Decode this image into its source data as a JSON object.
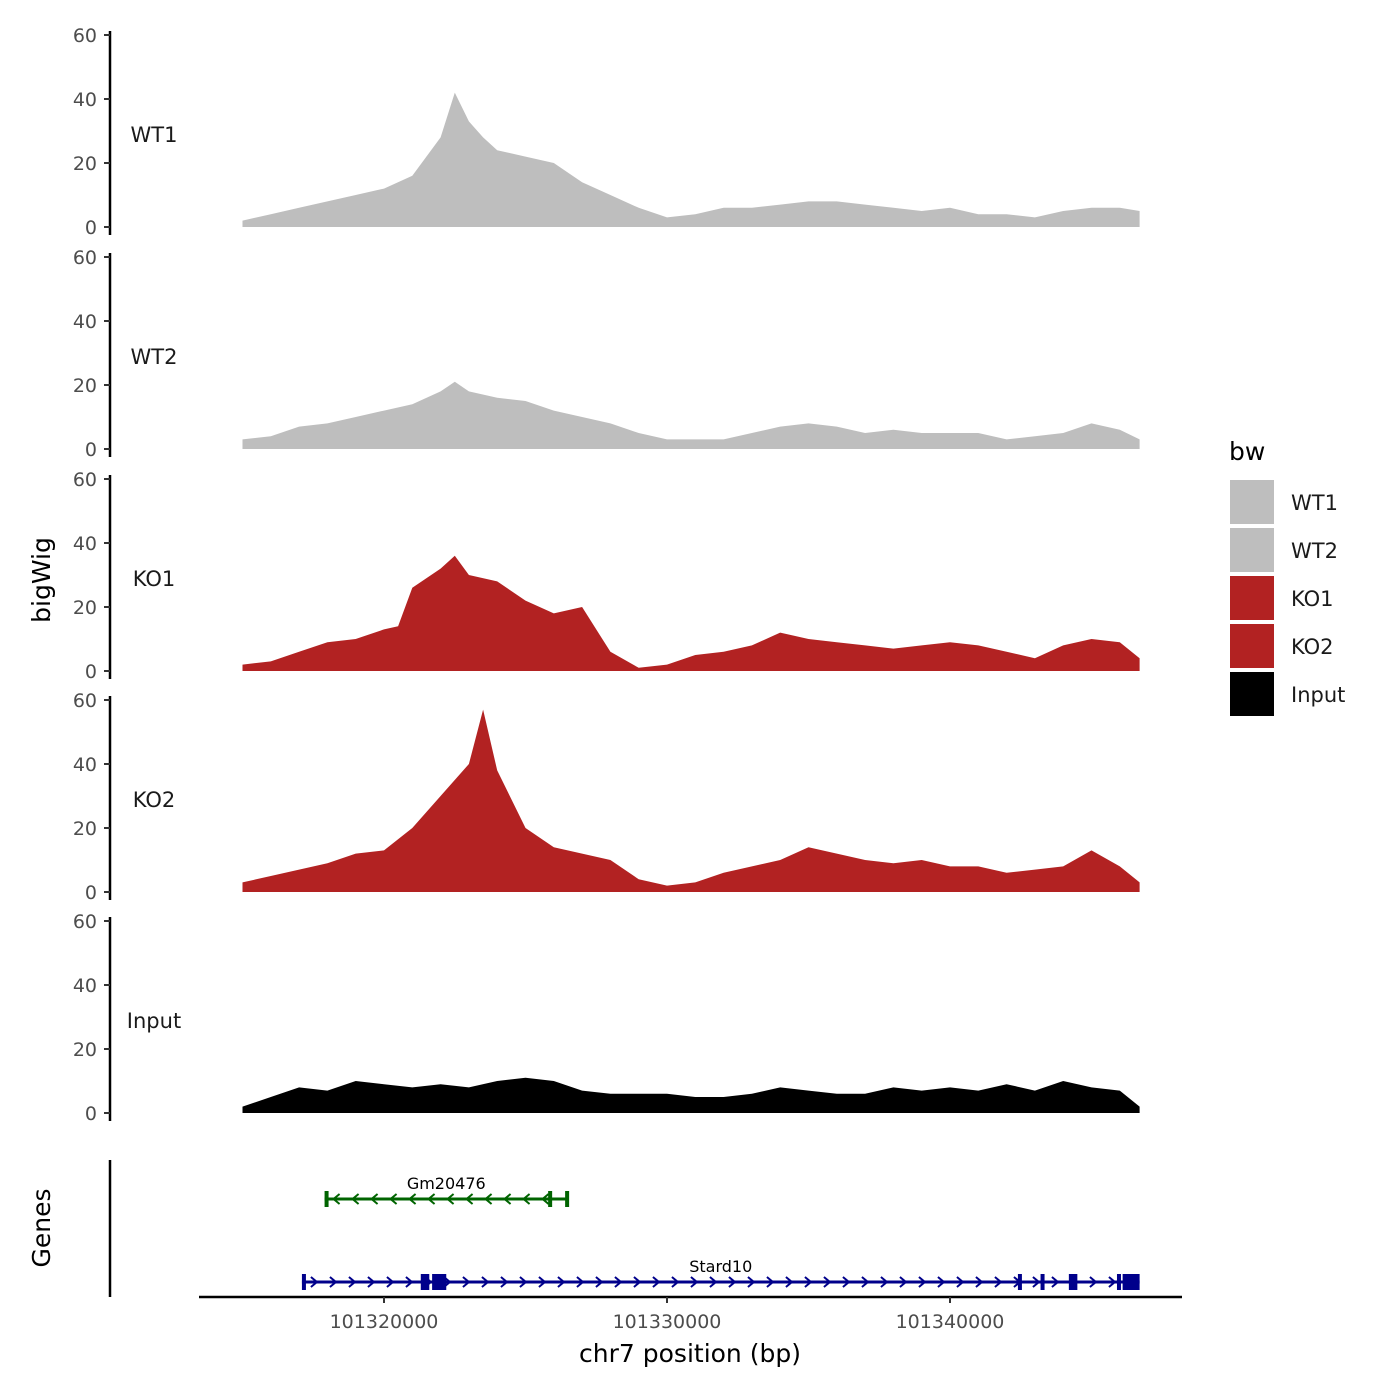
{
  "chart_data": {
    "type": "area",
    "region": {
      "chromosome": "chr7",
      "start": 101315000,
      "end": 101347000
    },
    "xlabel": "chr7 position (bp)",
    "ylabel": "bigWig",
    "genes_label": "Genes",
    "ylim": [
      0,
      60
    ],
    "yticks": [
      0,
      20,
      40,
      60
    ],
    "xticks": [
      101320000,
      101330000,
      101340000
    ],
    "xtick_labels": [
      "101320000",
      "101330000",
      "101340000"
    ],
    "legend": {
      "title": "bw",
      "entries": [
        {
          "label": "WT1",
          "color": "#bebebe"
        },
        {
          "label": "WT2",
          "color": "#bebebe"
        },
        {
          "label": "KO1",
          "color": "#b22222"
        },
        {
          "label": "KO2",
          "color": "#b22222"
        },
        {
          "label": "Input",
          "color": "#000000"
        }
      ]
    },
    "tracks": [
      {
        "name": "WT1",
        "color": "#bebebe",
        "x": [
          101315000,
          101316000,
          101317000,
          101318000,
          101319000,
          101320000,
          101321000,
          101321500,
          101322000,
          101322500,
          101323000,
          101323500,
          101324000,
          101325000,
          101326000,
          101327000,
          101328000,
          101329000,
          101330000,
          101331000,
          101332000,
          101333000,
          101334000,
          101335000,
          101336000,
          101337000,
          101338000,
          101339000,
          101340000,
          101341000,
          101342000,
          101343000,
          101344000,
          101345000,
          101346000,
          101346700
        ],
        "values": [
          2,
          4,
          6,
          8,
          10,
          12,
          16,
          22,
          28,
          42,
          33,
          28,
          24,
          22,
          20,
          14,
          10,
          6,
          3,
          4,
          6,
          6,
          7,
          8,
          8,
          7,
          6,
          5,
          6,
          4,
          4,
          3,
          5,
          6,
          6,
          5
        ]
      },
      {
        "name": "WT2",
        "color": "#bebebe",
        "x": [
          101315000,
          101316000,
          101317000,
          101318000,
          101319000,
          101320000,
          101321000,
          101322000,
          101322500,
          101323000,
          101324000,
          101325000,
          101326000,
          101327000,
          101328000,
          101329000,
          101330000,
          101331000,
          101332000,
          101333000,
          101334000,
          101335000,
          101336000,
          101337000,
          101338000,
          101339000,
          101340000,
          101341000,
          101342000,
          101343000,
          101344000,
          101345000,
          101346000,
          101346700
        ],
        "values": [
          3,
          4,
          7,
          8,
          10,
          12,
          14,
          18,
          21,
          18,
          16,
          15,
          12,
          10,
          8,
          5,
          3,
          3,
          3,
          5,
          7,
          8,
          7,
          5,
          6,
          5,
          5,
          5,
          3,
          4,
          5,
          8,
          6,
          3
        ]
      },
      {
        "name": "KO1",
        "color": "#b22222",
        "x": [
          101315000,
          101316000,
          101317000,
          101318000,
          101319000,
          101320000,
          101320500,
          101321000,
          101322000,
          101322500,
          101323000,
          101324000,
          101325000,
          101326000,
          101327000,
          101328000,
          101329000,
          101330000,
          101331000,
          101332000,
          101333000,
          101334000,
          101335000,
          101336000,
          101337000,
          101338000,
          101339000,
          101340000,
          101341000,
          101342000,
          101343000,
          101344000,
          101345000,
          101346000,
          101346700
        ],
        "values": [
          2,
          3,
          6,
          9,
          10,
          13,
          14,
          26,
          32,
          36,
          30,
          28,
          22,
          18,
          20,
          6,
          1,
          2,
          5,
          6,
          8,
          12,
          10,
          9,
          8,
          7,
          8,
          9,
          8,
          6,
          4,
          8,
          10,
          9,
          4
        ]
      },
      {
        "name": "KO2",
        "color": "#b22222",
        "x": [
          101315000,
          101316000,
          101317000,
          101318000,
          101319000,
          101320000,
          101321000,
          101322000,
          101323000,
          101323500,
          101324000,
          101325000,
          101326000,
          101327000,
          101328000,
          101329000,
          101330000,
          101331000,
          101332000,
          101333000,
          101334000,
          101335000,
          101336000,
          101337000,
          101338000,
          101339000,
          101340000,
          101341000,
          101342000,
          101343000,
          101344000,
          101345000,
          101346000,
          101346700
        ],
        "values": [
          3,
          5,
          7,
          9,
          12,
          13,
          20,
          30,
          40,
          57,
          38,
          20,
          14,
          12,
          10,
          4,
          2,
          3,
          6,
          8,
          10,
          14,
          12,
          10,
          9,
          10,
          8,
          8,
          6,
          7,
          8,
          13,
          8,
          3
        ]
      },
      {
        "name": "Input",
        "color": "#000000",
        "x": [
          101315000,
          101316000,
          101317000,
          101318000,
          101319000,
          101320000,
          101321000,
          101322000,
          101323000,
          101324000,
          101325000,
          101326000,
          101327000,
          101328000,
          101329000,
          101330000,
          101331000,
          101332000,
          101333000,
          101334000,
          101335000,
          101336000,
          101337000,
          101338000,
          101339000,
          101340000,
          101341000,
          101342000,
          101343000,
          101344000,
          101345000,
          101346000,
          101346700
        ],
        "values": [
          2,
          5,
          8,
          7,
          10,
          9,
          8,
          9,
          8,
          10,
          11,
          10,
          7,
          6,
          6,
          6,
          5,
          5,
          6,
          8,
          7,
          6,
          6,
          8,
          7,
          8,
          7,
          9,
          7,
          10,
          8,
          7,
          2
        ]
      }
    ],
    "genes": [
      {
        "name": "Gm20476",
        "strand": "-",
        "start": 101317900,
        "end": 101326500,
        "color": "#006400",
        "exons": [
          [
            101317900,
            101318000
          ],
          [
            101325800,
            101325900
          ],
          [
            101326400,
            101326500
          ]
        ]
      },
      {
        "name": "Stard10",
        "strand": "+",
        "start": 101317100,
        "end": 101346700,
        "color": "#00008b",
        "exons": [
          [
            101317100,
            101317200
          ],
          [
            101321300,
            101321600
          ],
          [
            101321700,
            101322200
          ],
          [
            101342400,
            101342500
          ],
          [
            101343200,
            101343300
          ],
          [
            101344200,
            101344500
          ],
          [
            101345900,
            101346000
          ],
          [
            101346100,
            101346700
          ]
        ]
      }
    ]
  }
}
